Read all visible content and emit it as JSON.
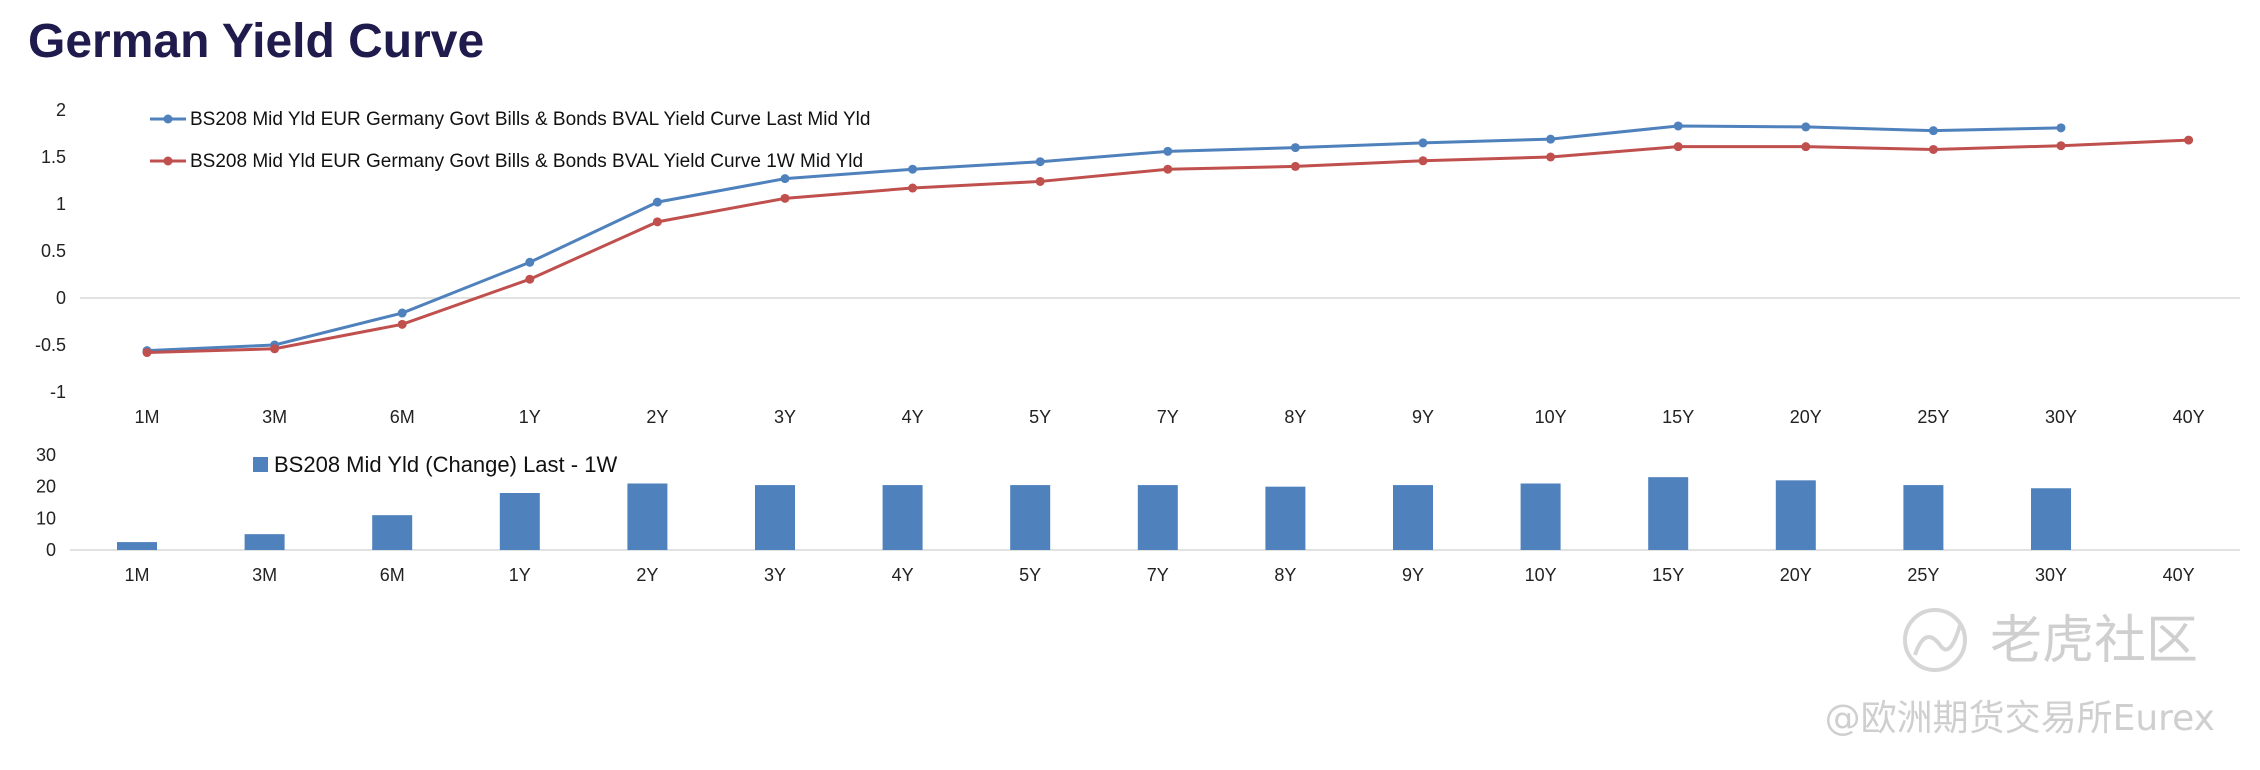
{
  "title": "German Yield Curve",
  "colors": {
    "last": "#4f81bd",
    "week": "#c0504d",
    "bar": "#4f81bd",
    "title": "#1f1b4d"
  },
  "watermark": {
    "brand": "老虎社区",
    "handle": "@欧洲期货交易所Eurex"
  },
  "chart_data": [
    {
      "type": "line",
      "categories": [
        "1M",
        "3M",
        "6M",
        "1Y",
        "2Y",
        "3Y",
        "4Y",
        "5Y",
        "7Y",
        "8Y",
        "9Y",
        "10Y",
        "15Y",
        "20Y",
        "25Y",
        "30Y",
        "40Y"
      ],
      "yticks": [
        "-1",
        "-0.5",
        "0",
        "0.5",
        "1",
        "1.5",
        "2"
      ],
      "ylim": [
        -1,
        2
      ],
      "legend_position": "top-left",
      "series": [
        {
          "name": "BS208 Mid Yld EUR Germany Govt Bills & Bonds BVAL Yield Curve Last Mid Yld",
          "values": [
            -0.56,
            -0.5,
            -0.16,
            0.38,
            1.02,
            1.27,
            1.37,
            1.45,
            1.56,
            1.6,
            1.65,
            1.69,
            1.83,
            1.82,
            1.78,
            1.81,
            null
          ]
        },
        {
          "name": "BS208 Mid Yld EUR Germany Govt Bills & Bonds BVAL Yield Curve 1W Mid Yld",
          "values": [
            -0.58,
            -0.54,
            -0.28,
            0.2,
            0.81,
            1.06,
            1.17,
            1.24,
            1.37,
            1.4,
            1.46,
            1.5,
            1.61,
            1.61,
            1.58,
            1.62,
            1.68
          ]
        }
      ]
    },
    {
      "type": "bar",
      "categories": [
        "1M",
        "3M",
        "6M",
        "1Y",
        "2Y",
        "3Y",
        "4Y",
        "5Y",
        "7Y",
        "8Y",
        "9Y",
        "10Y",
        "15Y",
        "20Y",
        "25Y",
        "30Y",
        "40Y"
      ],
      "yticks": [
        "0",
        "10",
        "20",
        "30"
      ],
      "ylim": [
        0,
        30
      ],
      "legend_position": "top-left",
      "series": [
        {
          "name": "BS208 Mid Yld  (Change) Last - 1W",
          "values": [
            2.5,
            5,
            11,
            18,
            21,
            20.5,
            20.5,
            20.5,
            20.5,
            20,
            20.5,
            21,
            23,
            22,
            20.5,
            19.5,
            null
          ]
        }
      ]
    }
  ]
}
